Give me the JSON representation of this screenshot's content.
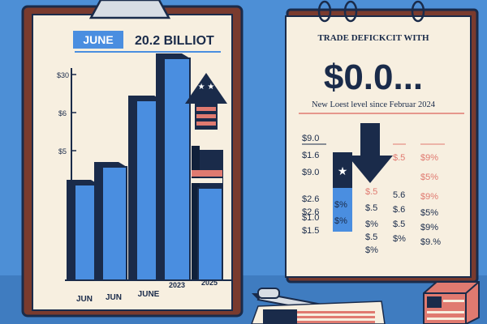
{
  "left_panel": {
    "month_tag": "JUNE",
    "headline": "20.2 BILLIOT",
    "y_tick_labels": [
      "$30",
      "$6",
      "$5"
    ],
    "x_tick_labels": [
      "JUN",
      "JUN",
      "JUNE",
      "2023",
      "2025"
    ]
  },
  "right_panel": {
    "heading": "TRADE DEFICKCIT WITH",
    "big_value": "$0.0...",
    "subheading": "New Loest level since Februar 2024",
    "table": {
      "col1": [
        "$9.0",
        "$1.6",
        "$9.0",
        "$2.6",
        "$2.6",
        "$1.0",
        "$1.5"
      ],
      "col2": [
        "$%",
        "$%"
      ],
      "col3": [
        "$.5",
        "$.5",
        "$%",
        "$.5",
        "$%"
      ],
      "col4": [
        "$.5",
        "5.6",
        "$.6",
        "$.5",
        "$%"
      ],
      "col5": [
        "$9%",
        "$5%",
        "$9%",
        "$5%",
        "$9%",
        "$9.%"
      ]
    }
  },
  "colors": {
    "background": "#4d8fd6",
    "navy": "#1a2b4a",
    "bar_blue": "#4a8ee0",
    "red": "#e07a70",
    "paper": "#f7efe0",
    "board": "#7a3b2e"
  }
}
